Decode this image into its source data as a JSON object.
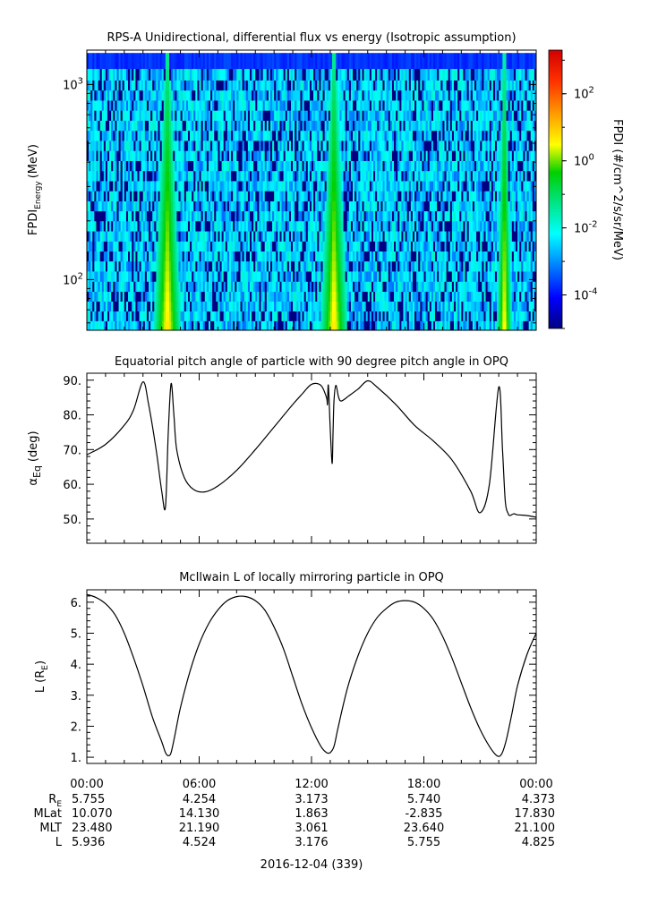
{
  "chart_data": [
    {
      "type": "heatmap",
      "title": "RPS-A Unidirectional, differential flux vs energy (Isotropic assumption)",
      "ylabel": "FPDI",
      "ylabel_sub": "Energy",
      "ylabel_unit": "(MeV)",
      "yscale": "log",
      "ylim": [
        55,
        1500
      ],
      "yticks": [
        {
          "value": 100,
          "base": "10",
          "exp": "2"
        },
        {
          "value": 1000,
          "base": "10",
          "exp": "3"
        }
      ],
      "energy_bins_mev": [
        58,
        65,
        73,
        82,
        92,
        104,
        117,
        132,
        148,
        167,
        188,
        212,
        238,
        268,
        302,
        340,
        383,
        431,
        486,
        547,
        616,
        694,
        781,
        880,
        991,
        1116,
        1300
      ],
      "hot_bands_hours": [
        {
          "center": 4.3,
          "width_low": 0.75,
          "width_high": 0.12
        },
        {
          "center": 13.2,
          "width_low": 0.75,
          "width_high": 0.12
        },
        {
          "center": 22.3,
          "width_low": 0.4,
          "width_high": 0.08
        }
      ],
      "colorbar": {
        "label": "FPDI (#/cm^2/s/sr/MeV)",
        "scale": "log",
        "range": [
          1e-05,
          2000
        ],
        "ticks": [
          {
            "base": "10",
            "exp": "2",
            "value": 100
          },
          {
            "base": "10",
            "exp": "0",
            "value": 1
          },
          {
            "base": "10",
            "exp": "-2",
            "value": 0.01
          },
          {
            "base": "10",
            "exp": "-4",
            "value": 0.0001
          }
        ]
      }
    },
    {
      "type": "line",
      "title": "Equatorial pitch angle of particle with 90 degree pitch angle in OPQ",
      "ylabel": "α",
      "ylabel_sub": "Eq",
      "ylabel_unit": "(deg)",
      "ylim": [
        43,
        92
      ],
      "yticks": [
        "50.",
        "60.",
        "70.",
        "80.",
        "90."
      ],
      "x_hours": [
        0,
        1,
        2,
        2.5,
        3.0,
        3.3,
        3.7,
        4.0,
        4.2,
        4.35,
        4.5,
        4.65,
        4.8,
        5.2,
        5.7,
        6.3,
        7.0,
        8.0,
        9.0,
        10.0,
        11.0,
        11.5,
        12.0,
        12.5,
        12.8,
        12.85,
        12.9,
        13.0,
        13.1,
        13.15,
        13.2,
        13.3,
        13.45,
        13.6,
        14.0,
        14.5,
        15.0,
        15.5,
        16.5,
        17.5,
        18.5,
        19.5,
        20.5,
        21.0,
        21.5,
        22.0,
        22.2,
        22.35,
        22.5,
        22.6,
        22.8,
        23.0,
        23.5,
        24.0
      ],
      "y_deg": [
        68.5,
        71.5,
        77,
        81.5,
        89.5,
        83,
        70,
        58,
        53.5,
        75,
        89,
        80,
        70,
        62,
        58.5,
        57.8,
        59.5,
        64,
        70,
        76.5,
        83,
        86,
        88.8,
        88.5,
        85,
        83,
        88.5,
        76,
        66,
        75,
        84,
        88.5,
        85,
        84,
        85.5,
        87.5,
        89.8,
        88,
        83,
        77,
        72.5,
        67,
        58,
        51.8,
        60,
        88,
        70,
        55,
        51.6,
        51,
        51.5,
        51.2,
        51,
        50.5
      ]
    },
    {
      "type": "line",
      "title": "McIlwain L of locally mirroring particle in OPQ",
      "ylabel": "L",
      "ylabel_unit": "(R",
      "ylabel_sub": "E",
      "ylabel_close": ")",
      "ylim": [
        0.8,
        6.4
      ],
      "yticks": [
        "1.",
        "2.",
        "3.",
        "4.",
        "5.",
        "6."
      ],
      "x_hours": [
        0,
        0.5,
        1,
        1.5,
        2,
        2.5,
        3,
        3.5,
        4,
        4.2,
        4.35,
        4.5,
        4.7,
        5,
        5.5,
        6,
        6.5,
        7,
        7.5,
        8,
        8.5,
        9,
        9.5,
        10,
        10.5,
        11,
        11.5,
        12,
        12.5,
        12.8,
        13.0,
        13.2,
        13.4,
        13.7,
        14,
        14.5,
        15,
        15.5,
        16,
        16.5,
        17,
        17.5,
        18,
        18.5,
        19,
        19.5,
        20,
        20.5,
        21,
        21.5,
        21.9,
        22.15,
        22.4,
        22.7,
        23,
        23.5,
        24
      ],
      "y_RE": [
        6.25,
        6.15,
        5.95,
        5.6,
        5.0,
        4.2,
        3.3,
        2.3,
        1.5,
        1.15,
        1.05,
        1.15,
        1.7,
        2.6,
        3.75,
        4.65,
        5.3,
        5.75,
        6.05,
        6.18,
        6.18,
        6.05,
        5.75,
        5.2,
        4.5,
        3.6,
        2.7,
        1.95,
        1.35,
        1.15,
        1.15,
        1.35,
        1.9,
        2.7,
        3.4,
        4.3,
        5.0,
        5.5,
        5.8,
        6.0,
        6.05,
        6.0,
        5.8,
        5.45,
        4.9,
        4.2,
        3.4,
        2.6,
        1.9,
        1.35,
        1.05,
        1.1,
        1.55,
        2.4,
        3.3,
        4.3,
        5.0
      ]
    }
  ],
  "x_axis": {
    "range_hours": [
      0,
      24
    ],
    "tick_labels": [
      "00:00",
      "06:00",
      "12:00",
      "18:00",
      "00:00"
    ],
    "date_label": "2016-12-04 (339)"
  },
  "ephemeris": {
    "rows": [
      {
        "label": "R",
        "sub": "E",
        "values": [
          "5.755",
          "4.254",
          "3.173",
          "5.740",
          "4.373"
        ]
      },
      {
        "label": "MLat",
        "sub": "",
        "values": [
          "10.070",
          "14.130",
          "1.863",
          "-2.835",
          "17.830"
        ]
      },
      {
        "label": "MLT",
        "sub": "",
        "values": [
          "23.480",
          "21.190",
          "3.061",
          "23.640",
          "21.100"
        ]
      },
      {
        "label": "L",
        "sub": "",
        "values": [
          "5.936",
          "4.524",
          "3.176",
          "5.755",
          "4.825"
        ]
      }
    ]
  }
}
